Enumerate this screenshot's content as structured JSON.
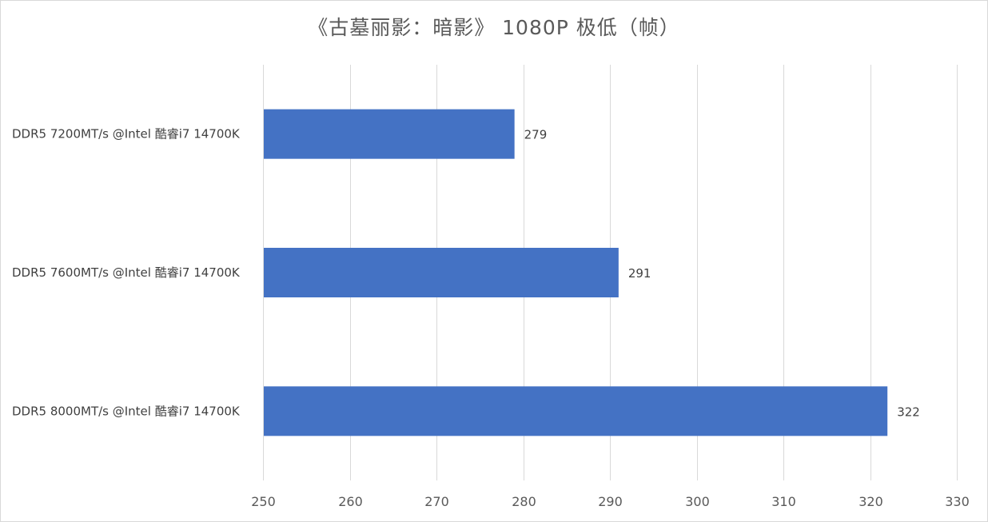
{
  "chart_data": {
    "type": "bar",
    "orientation": "horizontal",
    "title": "《古墓丽影：暗影》 1080P 极低（帧）",
    "categories": [
      "DDR5 7200MT/s @Intel 酷睿i7 14700K",
      "DDR5 7600MT/s @Intel 酷睿i7 14700K",
      "DDR5 8000MT/s @Intel 酷睿i7 14700K"
    ],
    "values": [
      279,
      291,
      322
    ],
    "data_labels": [
      "279",
      "291",
      "322"
    ],
    "xlim": [
      250,
      330
    ],
    "xticks": [
      250,
      260,
      270,
      280,
      290,
      300,
      310,
      320,
      330
    ],
    "xtick_labels": [
      "250",
      "260",
      "270",
      "280",
      "290",
      "300",
      "310",
      "320",
      "330"
    ],
    "xlabel": "",
    "ylabel": "",
    "grid": "vertical",
    "legend": "none",
    "bar_color": "#4472C4",
    "grid_color": "#d9d9d9"
  }
}
